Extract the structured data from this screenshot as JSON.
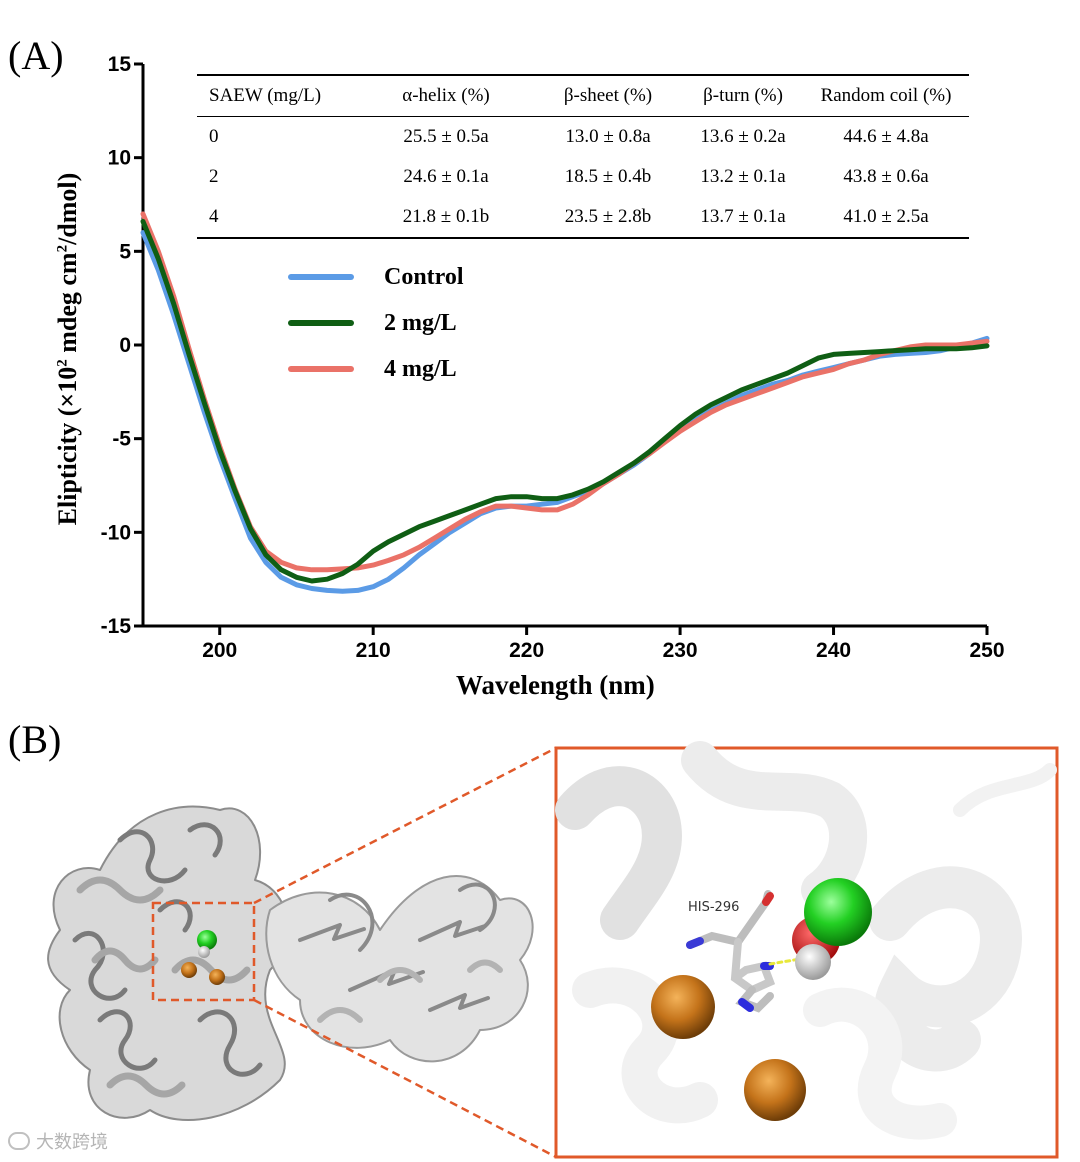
{
  "figure": {
    "panel_a_label": "(A)",
    "panel_b_label": "(B)",
    "residue_label": "HIS-296",
    "watermark": "大数跨境"
  },
  "chart_data": {
    "type": "line",
    "title": "",
    "xlabel": "Wavelength (nm)",
    "ylabel": "Elipticity (×10² mdeg cm²/dmol)",
    "ylabel_main": "Elipticity (×10",
    "ylabel_sup1": "2",
    "ylabel_mid": " mdeg cm",
    "ylabel_sup2": "2",
    "ylabel_end": "/dmol)",
    "xlim": [
      195,
      250
    ],
    "ylim": [
      -15,
      15
    ],
    "xticks": [
      200,
      210,
      220,
      230,
      240,
      250
    ],
    "yticks": [
      15,
      10,
      5,
      0,
      -5,
      -10,
      -15
    ],
    "legend_position": "upper-left",
    "series": [
      {
        "name": "Control",
        "color": "#5b9be6",
        "x": [
          195,
          196,
          197,
          198,
          199,
          200,
          201,
          202,
          203,
          204,
          205,
          206,
          207,
          208,
          209,
          210,
          211,
          212,
          213,
          214,
          215,
          216,
          217,
          218,
          219,
          220,
          221,
          222,
          223,
          224,
          225,
          226,
          227,
          228,
          229,
          230,
          231,
          232,
          233,
          234,
          235,
          236,
          237,
          238,
          239,
          240,
          241,
          242,
          243,
          244,
          245,
          246,
          247,
          248,
          249,
          250
        ],
        "y": [
          6.0,
          4.0,
          1.6,
          -1.0,
          -3.6,
          -6.0,
          -8.2,
          -10.3,
          -11.6,
          -12.4,
          -12.8,
          -13.0,
          -13.1,
          -13.15,
          -13.1,
          -12.9,
          -12.5,
          -11.9,
          -11.2,
          -10.6,
          -10.0,
          -9.5,
          -9.0,
          -8.7,
          -8.6,
          -8.6,
          -8.5,
          -8.4,
          -8.1,
          -7.8,
          -7.4,
          -6.9,
          -6.4,
          -5.8,
          -5.1,
          -4.5,
          -4.0,
          -3.5,
          -3.1,
          -2.7,
          -2.4,
          -2.1,
          -1.9,
          -1.6,
          -1.4,
          -1.2,
          -1.0,
          -0.8,
          -0.6,
          -0.5,
          -0.45,
          -0.4,
          -0.3,
          -0.1,
          0.1,
          0.35
        ]
      },
      {
        "name": "2 mg/L",
        "color": "#0f5e14",
        "x": [
          195,
          196,
          197,
          198,
          199,
          200,
          201,
          202,
          203,
          204,
          205,
          206,
          207,
          208,
          209,
          210,
          211,
          212,
          213,
          214,
          215,
          216,
          217,
          218,
          219,
          220,
          221,
          222,
          223,
          224,
          225,
          226,
          227,
          228,
          229,
          230,
          231,
          232,
          233,
          234,
          235,
          236,
          237,
          238,
          239,
          240,
          241,
          242,
          243,
          244,
          245,
          246,
          247,
          248,
          249,
          250
        ],
        "y": [
          6.6,
          4.6,
          2.2,
          -0.5,
          -3.1,
          -5.6,
          -7.8,
          -9.8,
          -11.2,
          -12.0,
          -12.4,
          -12.6,
          -12.5,
          -12.2,
          -11.7,
          -11.0,
          -10.5,
          -10.1,
          -9.7,
          -9.4,
          -9.1,
          -8.8,
          -8.5,
          -8.2,
          -8.1,
          -8.1,
          -8.2,
          -8.2,
          -8.0,
          -7.7,
          -7.3,
          -6.8,
          -6.3,
          -5.7,
          -5.0,
          -4.3,
          -3.7,
          -3.2,
          -2.8,
          -2.4,
          -2.1,
          -1.8,
          -1.5,
          -1.1,
          -0.7,
          -0.5,
          -0.45,
          -0.4,
          -0.35,
          -0.3,
          -0.25,
          -0.2,
          -0.2,
          -0.2,
          -0.15,
          -0.05
        ]
      },
      {
        "name": "4 mg/L",
        "color": "#ea7268",
        "x": [
          195,
          196,
          197,
          198,
          199,
          200,
          201,
          202,
          203,
          204,
          205,
          206,
          207,
          208,
          209,
          210,
          211,
          212,
          213,
          214,
          215,
          216,
          217,
          218,
          219,
          220,
          221,
          222,
          223,
          224,
          225,
          226,
          227,
          228,
          229,
          230,
          231,
          232,
          233,
          234,
          235,
          236,
          237,
          238,
          239,
          240,
          241,
          242,
          243,
          244,
          245,
          246,
          247,
          248,
          249,
          250
        ],
        "y": [
          7.0,
          5.0,
          2.6,
          -0.2,
          -2.9,
          -5.4,
          -7.7,
          -9.7,
          -11.0,
          -11.6,
          -11.9,
          -12.0,
          -12.0,
          -11.95,
          -11.9,
          -11.75,
          -11.5,
          -11.2,
          -10.8,
          -10.3,
          -9.8,
          -9.3,
          -8.9,
          -8.6,
          -8.6,
          -8.7,
          -8.8,
          -8.8,
          -8.5,
          -8.0,
          -7.4,
          -6.9,
          -6.3,
          -5.8,
          -5.2,
          -4.6,
          -4.1,
          -3.6,
          -3.2,
          -2.9,
          -2.6,
          -2.3,
          -2.0,
          -1.7,
          -1.5,
          -1.3,
          -1.0,
          -0.8,
          -0.5,
          -0.3,
          -0.1,
          0.0,
          0.0,
          0.0,
          0.1,
          0.2
        ]
      }
    ],
    "table": {
      "headers": [
        "SAEW (mg/L)",
        "α-helix (%)",
        "β-sheet (%)",
        "β-turn (%)",
        "Random coil (%)"
      ],
      "rows": [
        [
          "0",
          "25.5 ± 0.5a",
          "13.0 ± 0.8a",
          "13.6 ± 0.2a",
          "44.6 ± 4.8a"
        ],
        [
          "2",
          "24.6 ± 0.1a",
          "18.5 ± 0.4b",
          "13.2 ± 0.1a",
          "43.8 ± 0.6a"
        ],
        [
          "4",
          "21.8 ± 0.1b",
          "23.5 ± 2.8b",
          "13.7 ± 0.1a",
          "41.0 ± 2.5a"
        ]
      ]
    }
  }
}
